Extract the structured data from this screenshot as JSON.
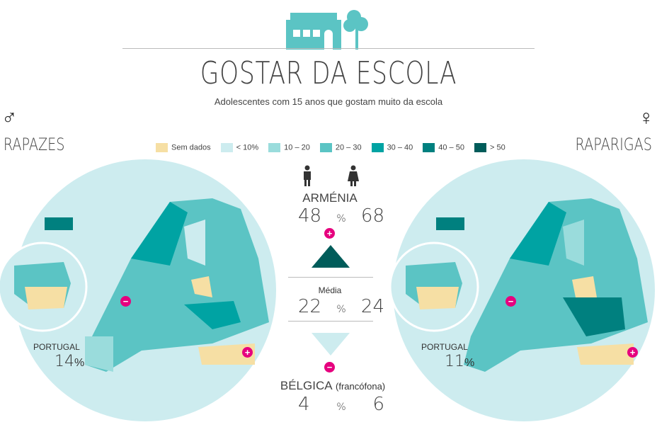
{
  "header": {
    "title": "GOSTAR DA ESCOLA",
    "subtitle": "Adolescentes com 15 anos que gostam muito da escola"
  },
  "left": {
    "symbol": "♂",
    "label": "RAPAZES",
    "portugal_label": "PORTUGAL",
    "portugal_value": "14",
    "unit": "%"
  },
  "right": {
    "symbol": "♀",
    "label": "RAPARIGAS",
    "portugal_label": "PORTUGAL",
    "portugal_value": "11",
    "unit": "%"
  },
  "legend": [
    {
      "label": "Sem dados",
      "color": "#f6dfa4"
    },
    {
      "label": "< 10%",
      "color": "#cdecef"
    },
    {
      "label": "10 – 20",
      "color": "#9adcdc"
    },
    {
      "label": "20 – 30",
      "color": "#5bc4c4"
    },
    {
      "label": "30 – 40",
      "color": "#00a3a3"
    },
    {
      "label": "40 – 50",
      "color": "#00807f"
    },
    {
      "label": "> 50",
      "color": "#005c5a"
    }
  ],
  "center": {
    "max": {
      "country": "ARMÉNIA",
      "boys": "48",
      "unit": "%",
      "girls": "68",
      "badge": "+"
    },
    "avg": {
      "label": "Média",
      "boys": "22",
      "unit": "%",
      "girls": "24"
    },
    "min": {
      "country": "BÉLGICA",
      "note": "(francófona)",
      "boys": "4",
      "unit": "%",
      "girls": "6",
      "badge": "−"
    }
  },
  "colors": {
    "highlight": "#e6007e",
    "ocean": "#cdecef",
    "brand": "#5bc4c4"
  }
}
